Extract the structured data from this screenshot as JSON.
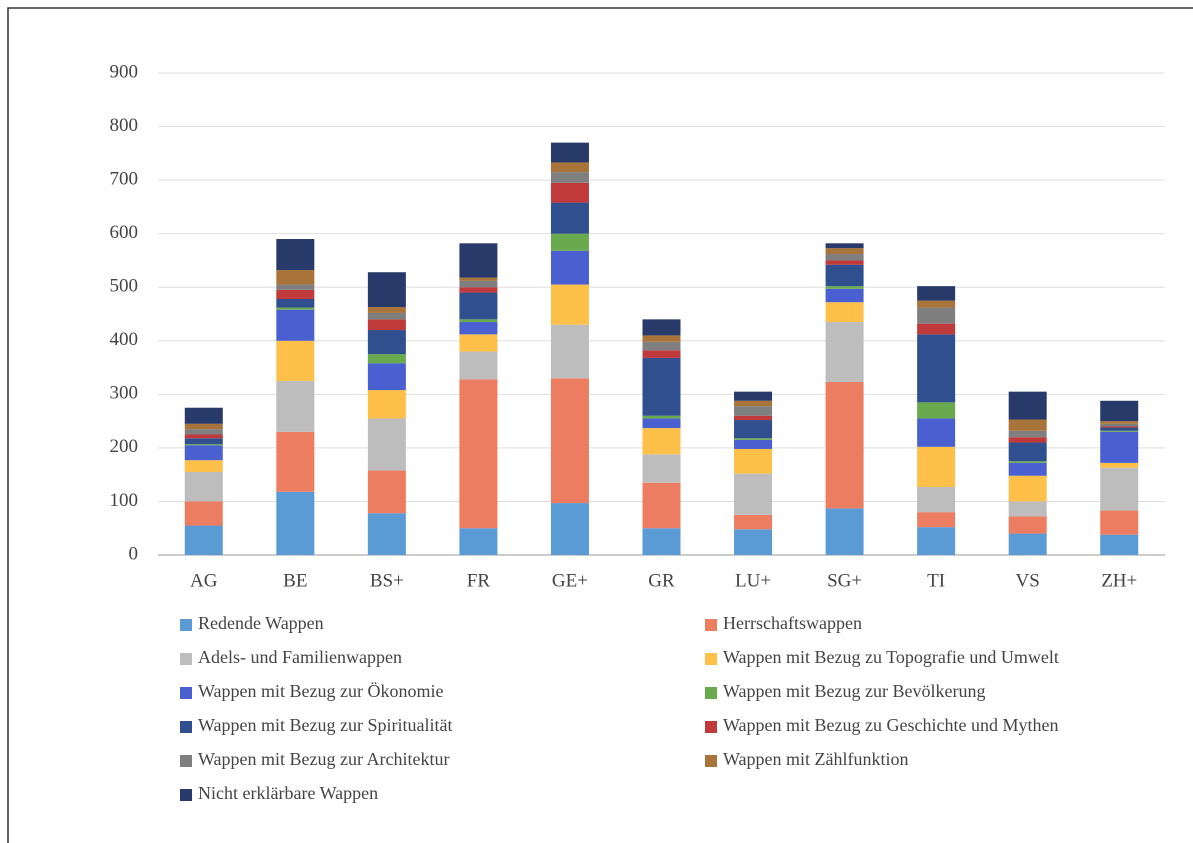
{
  "chart_data": {
    "type": "stacked_bar",
    "categories": [
      "AG",
      "BE",
      "BS+",
      "FR",
      "GE+",
      "GR",
      "LU+",
      "SG+",
      "TI",
      "VS",
      "ZH+"
    ],
    "series": [
      {
        "name": "Redende Wappen",
        "color": "#5b9bd5",
        "values": [
          55,
          118,
          78,
          50,
          97,
          50,
          48,
          87,
          52,
          40,
          38
        ]
      },
      {
        "name": "Herrschaftswappen",
        "color": "#ed7d60",
        "values": [
          45,
          112,
          80,
          278,
          233,
          85,
          27,
          236,
          28,
          32,
          45
        ]
      },
      {
        "name": "Adels- und Familienwappen",
        "color": "#bdbdbd",
        "values": [
          55,
          95,
          97,
          52,
          100,
          53,
          77,
          112,
          47,
          28,
          80
        ]
      },
      {
        "name": "Wappen mit Bezug zu Topografie und Umwelt",
        "color": "#ffc04a",
        "values": [
          22,
          75,
          53,
          32,
          75,
          49,
          46,
          37,
          75,
          48,
          9
        ]
      },
      {
        "name": "Wappen mit Bezug zur Ökonomie",
        "color": "#4a5fd0",
        "values": [
          28,
          58,
          50,
          23,
          63,
          18,
          17,
          25,
          53,
          24,
          58
        ]
      },
      {
        "name": "Wappen mit Bezug zur Bevölkerung",
        "color": "#6aaa4f",
        "values": [
          2,
          4,
          17,
          5,
          32,
          5,
          3,
          5,
          30,
          3,
          2
        ]
      },
      {
        "name": "Wappen mit Bezug zur Spiritualität",
        "color": "#2f4f8f",
        "values": [
          11,
          16,
          45,
          50,
          58,
          108,
          34,
          40,
          127,
          35,
          6
        ]
      },
      {
        "name": "Wappen mit Bezug zu Geschichte und Mythen",
        "color": "#c0393b",
        "values": [
          7,
          17,
          20,
          10,
          37,
          14,
          8,
          8,
          20,
          10,
          2
        ]
      },
      {
        "name": "Wappen mit Bezug zur Architektur",
        "color": "#7f7f7f",
        "values": [
          10,
          10,
          12,
          12,
          20,
          16,
          18,
          12,
          30,
          12,
          5
        ]
      },
      {
        "name": "Wappen mit Zählfunktion",
        "color": "#a8743a",
        "values": [
          10,
          27,
          11,
          6,
          18,
          12,
          10,
          11,
          13,
          21,
          5
        ]
      },
      {
        "name": "Nicht erklärbare Wappen",
        "color": "#283a6a",
        "values": [
          30,
          58,
          65,
          64,
          37,
          30,
          17,
          9,
          27,
          52,
          38
        ]
      }
    ],
    "ylim": [
      0,
      900
    ],
    "yticks": [
      0,
      100,
      200,
      300,
      400,
      500,
      600,
      700,
      800,
      900
    ],
    "grid": true
  }
}
